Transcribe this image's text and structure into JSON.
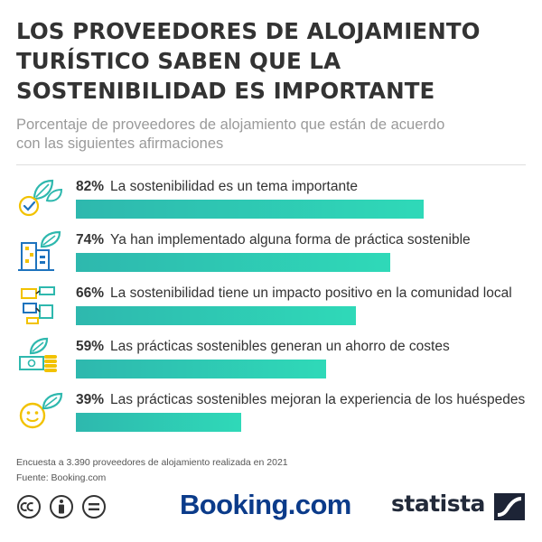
{
  "title_lines": [
    "LOS PROVEEDORES DE ALOJAMIENTO",
    "TURÍSTICO SABEN QUE LA",
    "SOSTENIBILIDAD ES IMPORTANTE"
  ],
  "subtitle_lines": [
    "Porcentaje de proveedores de alojamiento que están de acuerdo",
    "con las siguientes afirmaciones"
  ],
  "footer": {
    "note": "Encuesta a 3.390 proveedores de alojamiento realizada en 2021",
    "source": "Fuente: Booking.com",
    "brand_booking": "Booking.com",
    "brand_statista": "statista"
  },
  "colors": {
    "bar_start": "#2eb8ae",
    "bar_end": "#2fd9b8",
    "accent_yellow": "#f2c200",
    "accent_blue": "#1e73be",
    "booking_blue": "#0b3b8a"
  },
  "chart_data": {
    "type": "bar",
    "orientation": "horizontal",
    "xlim": [
      0,
      100
    ],
    "categories": [
      "La sostenibilidad es un tema importante",
      "Ya han implementado alguna forma de práctica sostenible",
      "La sostenibilidad tiene un impacto positivo en la comunidad local",
      "Las prácticas sostenibles generan un ahorro de costes",
      "Las prácticas sostenibles mejoran la experiencia de los huéspedes"
    ],
    "values": [
      82,
      74,
      66,
      59,
      39
    ],
    "value_labels": [
      "82%",
      "74%",
      "66%",
      "59%",
      "39%"
    ],
    "icons": [
      "leaf-checkmark-icon",
      "buildings-leaf-icon",
      "hands-icon",
      "money-coins-leaf-icon",
      "smiley-leaf-icon"
    ]
  }
}
